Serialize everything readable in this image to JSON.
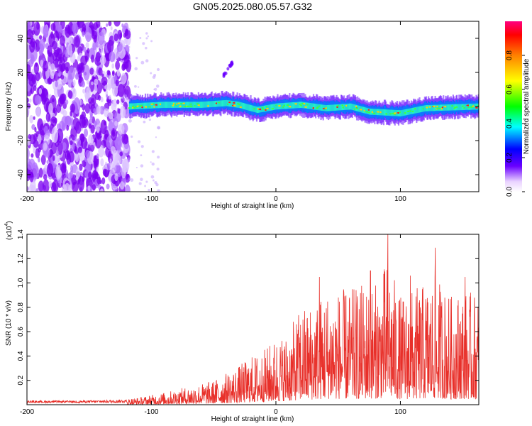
{
  "title": "GN05.2025.080.05.57.G32",
  "chart_data": [
    {
      "type": "heatmap",
      "xlabel": "Height of straight line (km)",
      "ylabel": "Frequency (Hz)",
      "xlim": [
        -200,
        163
      ],
      "ylim": [
        -50,
        50
      ],
      "x_ticks": [
        -200,
        -100,
        0,
        100
      ],
      "x_tick_labels": [
        "-200",
        "-100",
        "0",
        "100"
      ],
      "y_ticks": [
        -40,
        -20,
        0,
        20,
        40
      ],
      "y_tick_labels": [
        "-40",
        "-20",
        "0",
        "20",
        "40"
      ],
      "colorbar": {
        "label": "Normalized spectral amplitude",
        "range": [
          0,
          1
        ],
        "ticks": [
          0,
          0.2,
          0.4,
          0.6,
          0.8
        ],
        "tick_labels": [
          "0.0",
          "0.2",
          "0.4",
          "0.6",
          "0.8"
        ]
      },
      "noise_region_x": [
        -200,
        -118
      ],
      "main_band_x": [
        -118,
        163
      ],
      "band_center_path": [
        [
          -118,
          0
        ],
        [
          -90,
          1
        ],
        [
          -60,
          1
        ],
        [
          -40,
          2
        ],
        [
          -30,
          1
        ],
        [
          -15,
          -2
        ],
        [
          0,
          0
        ],
        [
          20,
          1
        ],
        [
          40,
          -1
        ],
        [
          60,
          0
        ],
        [
          75,
          -3
        ],
        [
          100,
          -4
        ],
        [
          120,
          -1
        ],
        [
          163,
          0
        ]
      ],
      "side_feature": {
        "x": [
          -42,
          -35
        ],
        "y": [
          18,
          26
        ]
      }
    },
    {
      "type": "line",
      "xlabel": "Height of straight line (km)",
      "ylabel": "SNR (10 * v/v)",
      "y_multiplier_label": "(x10",
      "y_multiplier_exp": "4",
      "xlim": [
        -200,
        163
      ],
      "ylim": [
        0,
        1.4
      ],
      "x_ticks": [
        -200,
        -100,
        0,
        100
      ],
      "x_tick_labels": [
        "-200",
        "-100",
        "0",
        "100"
      ],
      "y_ticks": [
        0.2,
        0.4,
        0.6,
        0.8,
        1.0,
        1.2,
        1.4
      ],
      "y_tick_labels": [
        "0.2",
        "0.4",
        "0.6",
        "0.8",
        "1.0",
        "1.2",
        "1.4"
      ],
      "color": "#e8302a",
      "envelope": [
        [
          -200,
          0.03
        ],
        [
          -160,
          0.03
        ],
        [
          -130,
          0.04
        ],
        [
          -110,
          0.06
        ],
        [
          -90,
          0.1
        ],
        [
          -70,
          0.15
        ],
        [
          -50,
          0.2
        ],
        [
          -30,
          0.32
        ],
        [
          -20,
          0.4
        ],
        [
          -10,
          0.45
        ],
        [
          0,
          0.55
        ],
        [
          10,
          0.6
        ],
        [
          20,
          0.8
        ],
        [
          30,
          0.85
        ],
        [
          40,
          0.95
        ],
        [
          50,
          0.95
        ],
        [
          60,
          0.95
        ],
        [
          70,
          1.0
        ],
        [
          80,
          1.0
        ],
        [
          90,
          1.2
        ],
        [
          100,
          0.9
        ],
        [
          110,
          0.95
        ],
        [
          120,
          1.0
        ],
        [
          130,
          1.05
        ],
        [
          140,
          0.9
        ],
        [
          150,
          0.95
        ],
        [
          163,
          0.9
        ]
      ],
      "peaks": [
        [
          90,
          1.4
        ],
        [
          128,
          1.29
        ],
        [
          76,
          1.1
        ],
        [
          108,
          1.06
        ],
        [
          152,
          1.05
        ],
        [
          35,
          1.05
        ]
      ]
    }
  ]
}
